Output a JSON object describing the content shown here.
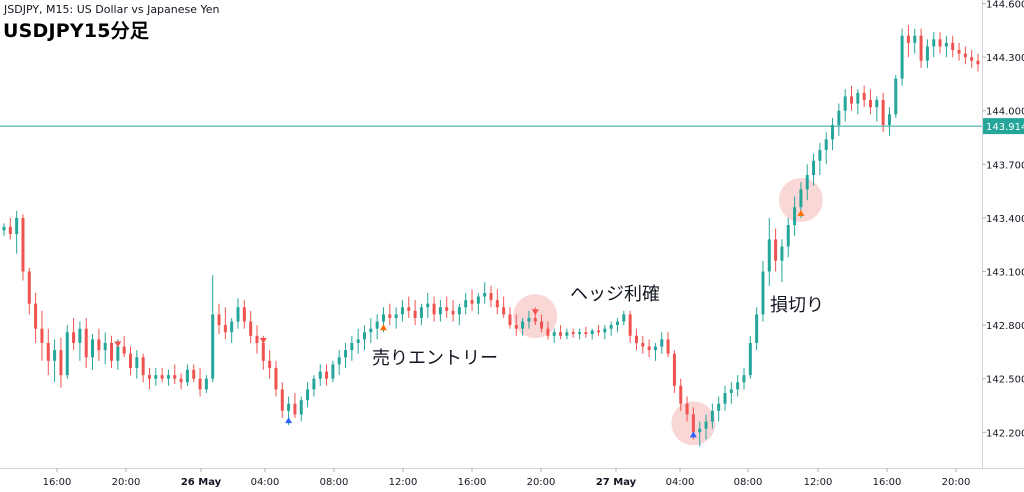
{
  "header": {
    "symbol_line": "JSDJPY, M15: US Dollar vs Japanese Yen",
    "chart_title": "USDJPY15分足"
  },
  "annotations": {
    "sell_entry": "売りエントリー",
    "hedge_take_profit": "ヘッジ利確",
    "stop_loss": "損切り"
  },
  "colors": {
    "up_candle": "#26a69a",
    "down_candle": "#ef5350",
    "price_line": "#26a69a",
    "annotation_circle": "#f8c9c9",
    "marker_up": "#2962ff",
    "marker_down": "#ef5350",
    "marker_orange": "#ff6d00"
  },
  "chart_data": {
    "type": "candlestick",
    "title": "USDJPY15分足",
    "subtitle": "JSDJPY, M15: US Dollar vs Japanese Yen",
    "yaxis": {
      "ticks": [
        "144.600",
        "144.300",
        "144.000",
        "143.700",
        "143.400",
        "143.100",
        "142.800",
        "142.500",
        "142.200"
      ],
      "range": [
        142.0,
        144.62
      ],
      "position": "right"
    },
    "xaxis": {
      "ticks": [
        "16:00",
        "20:00",
        "26 May",
        "04:00",
        "08:00",
        "12:00",
        "16:00",
        "20:00",
        "27 May",
        "04:00",
        "08:00",
        "12:00",
        "16:00",
        "20:00"
      ],
      "bold_ticks": [
        "26 May",
        "27 May"
      ]
    },
    "price_line": {
      "value": 143.914,
      "label": "143.914"
    },
    "ohlc": [
      [
        143.33,
        143.37,
        143.3,
        143.35
      ],
      [
        143.35,
        143.4,
        143.28,
        143.31
      ],
      [
        143.31,
        143.44,
        143.2,
        143.4
      ],
      [
        143.4,
        143.42,
        143.05,
        143.1
      ],
      [
        143.1,
        143.12,
        142.86,
        142.92
      ],
      [
        142.92,
        142.98,
        142.7,
        142.78
      ],
      [
        142.78,
        142.88,
        142.6,
        142.7
      ],
      [
        142.7,
        142.78,
        142.52,
        142.6
      ],
      [
        142.6,
        142.72,
        142.48,
        142.66
      ],
      [
        142.66,
        142.73,
        142.45,
        142.52
      ],
      [
        142.52,
        142.8,
        142.5,
        142.76
      ],
      [
        142.76,
        142.84,
        142.66,
        142.7
      ],
      [
        142.7,
        142.82,
        142.6,
        142.78
      ],
      [
        142.78,
        142.84,
        142.56,
        142.62
      ],
      [
        142.62,
        142.75,
        142.55,
        142.72
      ],
      [
        142.72,
        142.78,
        142.6,
        142.66
      ],
      [
        142.66,
        142.76,
        142.58,
        142.7
      ],
      [
        142.7,
        142.74,
        142.56,
        142.6
      ],
      [
        142.6,
        142.72,
        142.55,
        142.68
      ],
      [
        142.68,
        142.74,
        142.62,
        142.64
      ],
      [
        142.64,
        142.68,
        142.52,
        142.56
      ],
      [
        142.56,
        142.66,
        142.5,
        142.62
      ],
      [
        142.62,
        142.64,
        142.48,
        142.52
      ],
      [
        142.52,
        142.56,
        142.44,
        142.5
      ],
      [
        142.5,
        142.56,
        142.46,
        142.52
      ],
      [
        142.52,
        142.56,
        142.48,
        142.5
      ],
      [
        142.5,
        142.55,
        142.46,
        142.52
      ],
      [
        142.52,
        142.58,
        142.47,
        142.5
      ],
      [
        142.5,
        142.53,
        142.44,
        142.48
      ],
      [
        142.48,
        142.58,
        142.46,
        142.55
      ],
      [
        142.55,
        142.58,
        142.48,
        142.5
      ],
      [
        142.5,
        142.56,
        142.4,
        142.44
      ],
      [
        142.44,
        142.52,
        142.42,
        142.5
      ],
      [
        142.5,
        143.08,
        142.48,
        142.86
      ],
      [
        142.86,
        142.92,
        142.75,
        142.8
      ],
      [
        142.8,
        142.9,
        142.72,
        142.76
      ],
      [
        142.76,
        142.84,
        142.7,
        142.82
      ],
      [
        142.82,
        142.95,
        142.78,
        142.9
      ],
      [
        142.9,
        142.94,
        142.78,
        142.82
      ],
      [
        142.82,
        142.88,
        142.7,
        142.74
      ],
      [
        142.74,
        142.8,
        142.64,
        142.7
      ],
      [
        142.7,
        142.74,
        142.55,
        142.6
      ],
      [
        142.6,
        142.66,
        142.5,
        142.56
      ],
      [
        142.56,
        142.6,
        142.4,
        142.44
      ],
      [
        142.44,
        142.48,
        142.28,
        142.32
      ],
      [
        142.32,
        142.4,
        142.24,
        142.36
      ],
      [
        142.36,
        142.42,
        142.28,
        142.3
      ],
      [
        142.3,
        142.4,
        142.26,
        142.38
      ],
      [
        142.38,
        142.48,
        142.34,
        142.44
      ],
      [
        142.44,
        142.52,
        142.4,
        142.5
      ],
      [
        142.5,
        142.58,
        142.46,
        142.54
      ],
      [
        142.54,
        142.58,
        142.46,
        142.5
      ],
      [
        142.5,
        142.6,
        142.48,
        142.58
      ],
      [
        142.58,
        142.66,
        142.52,
        142.62
      ],
      [
        142.62,
        142.7,
        142.56,
        142.66
      ],
      [
        142.66,
        142.74,
        142.6,
        142.7
      ],
      [
        142.7,
        142.78,
        142.64,
        142.72
      ],
      [
        142.72,
        142.8,
        142.66,
        142.76
      ],
      [
        142.76,
        142.84,
        142.7,
        142.78
      ],
      [
        142.78,
        142.86,
        142.72,
        142.82
      ],
      [
        142.82,
        142.9,
        142.76,
        142.86
      ],
      [
        142.86,
        142.92,
        142.8,
        142.84
      ],
      [
        142.84,
        142.9,
        142.78,
        142.86
      ],
      [
        142.86,
        142.94,
        142.82,
        142.9
      ],
      [
        142.9,
        142.96,
        142.84,
        142.88
      ],
      [
        142.88,
        142.94,
        142.8,
        142.84
      ],
      [
        142.84,
        142.92,
        142.8,
        142.9
      ],
      [
        142.9,
        142.98,
        142.84,
        142.92
      ],
      [
        142.92,
        142.96,
        142.82,
        142.86
      ],
      [
        142.86,
        142.94,
        142.82,
        142.9
      ],
      [
        142.9,
        142.96,
        142.84,
        142.88
      ],
      [
        142.88,
        142.94,
        142.82,
        142.86
      ],
      [
        142.86,
        142.92,
        142.8,
        142.9
      ],
      [
        142.9,
        142.98,
        142.86,
        142.94
      ],
      [
        142.94,
        143.0,
        142.88,
        142.92
      ],
      [
        142.92,
        142.98,
        142.86,
        142.96
      ],
      [
        142.96,
        143.04,
        142.92,
        142.98
      ],
      [
        142.98,
        143.02,
        142.9,
        142.94
      ],
      [
        142.94,
        143.0,
        142.86,
        142.9
      ],
      [
        142.9,
        142.96,
        142.84,
        142.86
      ],
      [
        142.86,
        142.9,
        142.78,
        142.8
      ],
      [
        142.8,
        142.86,
        142.74,
        142.78
      ],
      [
        142.78,
        142.84,
        142.74,
        142.82
      ],
      [
        142.82,
        142.88,
        142.78,
        142.84
      ],
      [
        142.84,
        142.9,
        142.8,
        142.82
      ],
      [
        142.82,
        142.86,
        142.76,
        142.78
      ],
      [
        142.78,
        142.82,
        142.72,
        142.74
      ],
      [
        142.74,
        142.78,
        142.7,
        142.76
      ],
      [
        142.76,
        142.8,
        142.72,
        142.74
      ],
      [
        142.74,
        142.78,
        142.72,
        142.76
      ],
      [
        142.76,
        142.78,
        142.73,
        142.75
      ],
      [
        142.75,
        142.78,
        142.72,
        142.76
      ],
      [
        142.76,
        142.79,
        142.73,
        142.75
      ],
      [
        142.75,
        142.78,
        142.72,
        142.77
      ],
      [
        142.77,
        142.8,
        142.74,
        142.76
      ],
      [
        142.76,
        142.8,
        142.72,
        142.78
      ],
      [
        142.78,
        142.82,
        142.74,
        142.8
      ],
      [
        142.8,
        142.84,
        142.76,
        142.82
      ],
      [
        142.82,
        142.88,
        142.8,
        142.86
      ],
      [
        142.86,
        142.88,
        142.7,
        142.74
      ],
      [
        142.74,
        142.78,
        142.66,
        142.7
      ],
      [
        142.7,
        142.74,
        142.64,
        142.68
      ],
      [
        142.68,
        142.72,
        142.62,
        142.66
      ],
      [
        142.66,
        142.7,
        142.6,
        142.68
      ],
      [
        142.68,
        142.76,
        142.64,
        142.72
      ],
      [
        142.72,
        142.76,
        142.62,
        142.64
      ],
      [
        142.64,
        142.66,
        142.42,
        142.46
      ],
      [
        142.46,
        142.5,
        142.32,
        142.36
      ],
      [
        142.36,
        142.4,
        142.26,
        142.3
      ],
      [
        142.3,
        142.34,
        142.16,
        142.2
      ],
      [
        142.2,
        142.26,
        142.12,
        142.22
      ],
      [
        142.22,
        142.3,
        142.16,
        142.26
      ],
      [
        142.26,
        142.36,
        142.22,
        142.32
      ],
      [
        142.32,
        142.4,
        142.26,
        142.36
      ],
      [
        142.36,
        142.46,
        142.32,
        142.42
      ],
      [
        142.42,
        142.48,
        142.36,
        142.44
      ],
      [
        142.44,
        142.52,
        142.4,
        142.48
      ],
      [
        142.48,
        142.56,
        142.44,
        142.52
      ],
      [
        142.52,
        142.74,
        142.5,
        142.7
      ],
      [
        142.7,
        142.9,
        142.66,
        142.86
      ],
      [
        142.86,
        143.16,
        142.82,
        143.1
      ],
      [
        143.1,
        143.4,
        143.02,
        143.28
      ],
      [
        143.28,
        143.34,
        143.1,
        143.16
      ],
      [
        143.16,
        143.28,
        143.04,
        143.24
      ],
      [
        143.24,
        143.4,
        143.18,
        143.36
      ],
      [
        143.36,
        143.52,
        143.3,
        143.46
      ],
      [
        143.46,
        143.6,
        143.4,
        143.56
      ],
      [
        143.56,
        143.7,
        143.5,
        143.64
      ],
      [
        143.64,
        143.76,
        143.58,
        143.72
      ],
      [
        143.72,
        143.82,
        143.64,
        143.78
      ],
      [
        143.78,
        143.88,
        143.7,
        143.84
      ],
      [
        143.84,
        143.96,
        143.78,
        143.92
      ],
      [
        143.92,
        144.04,
        143.86,
        144.0
      ],
      [
        144.0,
        144.12,
        143.94,
        144.08
      ],
      [
        144.08,
        144.14,
        144.0,
        144.04
      ],
      [
        144.04,
        144.12,
        143.98,
        144.1
      ],
      [
        144.1,
        144.14,
        144.02,
        144.06
      ],
      [
        144.06,
        144.12,
        143.98,
        144.02
      ],
      [
        144.02,
        144.08,
        143.94,
        144.06
      ],
      [
        144.06,
        144.1,
        143.88,
        143.92
      ],
      [
        143.92,
        144.02,
        143.86,
        143.98
      ],
      [
        143.98,
        144.2,
        143.96,
        144.18
      ],
      [
        144.18,
        144.46,
        144.14,
        144.42
      ],
      [
        144.42,
        144.48,
        144.3,
        144.38
      ],
      [
        144.38,
        144.46,
        144.32,
        144.42
      ],
      [
        144.42,
        144.46,
        144.24,
        144.28
      ],
      [
        144.28,
        144.4,
        144.24,
        144.36
      ],
      [
        144.36,
        144.44,
        144.3,
        144.4
      ],
      [
        144.4,
        144.44,
        144.32,
        144.36
      ],
      [
        144.36,
        144.42,
        144.3,
        144.38
      ],
      [
        144.38,
        144.42,
        144.3,
        144.34
      ],
      [
        144.34,
        144.38,
        144.28,
        144.32
      ],
      [
        144.32,
        144.36,
        144.26,
        144.3
      ],
      [
        144.3,
        144.34,
        144.24,
        144.28
      ],
      [
        144.28,
        144.32,
        144.22,
        144.26
      ]
    ],
    "annotated_points": [
      {
        "index": 18,
        "marker": "down",
        "color": "#ef5350"
      },
      {
        "index": 41,
        "marker": "down",
        "color": "#ef5350"
      },
      {
        "index": 45,
        "marker": "up",
        "color": "#2962ff"
      },
      {
        "index": 60,
        "marker": "up",
        "color": "#ff6d00"
      },
      {
        "index": 84,
        "marker": "down",
        "color": "#ef5350"
      },
      {
        "index": 109,
        "marker": "up",
        "color": "#2962ff"
      },
      {
        "index": 126,
        "marker": "up",
        "color": "#ff6d00"
      }
    ],
    "highlight_circles": [
      84,
      109,
      126
    ]
  }
}
